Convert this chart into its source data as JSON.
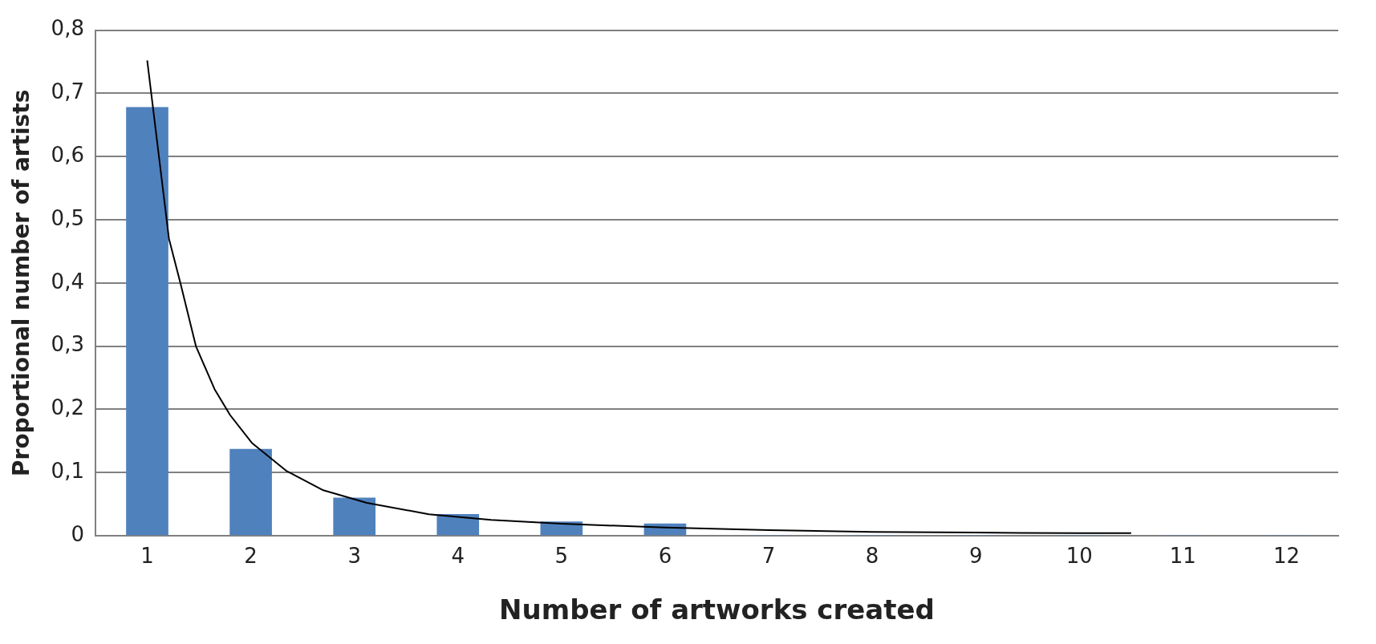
{
  "chart_data": {
    "type": "bar",
    "xlabel": "Number of artworks created",
    "ylabel": "Proportional number of artists",
    "x": [
      1,
      2,
      3,
      4,
      5,
      6,
      7,
      8,
      9,
      10,
      11,
      12
    ],
    "series": [
      {
        "color": "#4f81bd",
        "values": [
          0.678,
          0.137,
          0.06,
          0.034,
          0.022,
          0.019,
          0,
          0,
          0,
          0,
          0,
          0
        ]
      },
      {
        "type": "line",
        "color": "#000000",
        "x": [
          1,
          1.21,
          1.32,
          1.47,
          1.65,
          1.8,
          2.01,
          2.34,
          2.7,
          3.12,
          3.72,
          4.32,
          5,
          6,
          7,
          8,
          9,
          10,
          10.5
        ],
        "values": [
          0.752,
          0.47,
          0.4,
          0.3,
          0.232,
          0.191,
          0.147,
          0.103,
          0.072,
          0.052,
          0.034,
          0.025,
          0.019,
          0.013,
          0.009,
          0.006,
          0.005,
          0.004,
          0.004
        ]
      }
    ],
    "xlim": [
      0.5,
      12.5
    ],
    "xticks": [
      1,
      2,
      3,
      4,
      5,
      6,
      7,
      8,
      9,
      10,
      11,
      12
    ],
    "ylim": [
      0,
      0.8
    ],
    "yticks": [
      0,
      {
        "value": 0.1,
        "label": "0,1"
      },
      {
        "value": 0.2,
        "label": "0,2"
      },
      {
        "value": 0.3,
        "label": "0,3"
      },
      {
        "value": 0.4,
        "label": "0,4"
      },
      {
        "value": 0.5,
        "label": "0,5"
      },
      {
        "value": 0.6,
        "label": "0,6"
      },
      {
        "value": 0.7,
        "label": "0,7"
      },
      {
        "value": 0.8,
        "label": "0,8"
      }
    ],
    "grid": "y",
    "legend": false,
    "marker": "none",
    "line_style": "solid"
  }
}
